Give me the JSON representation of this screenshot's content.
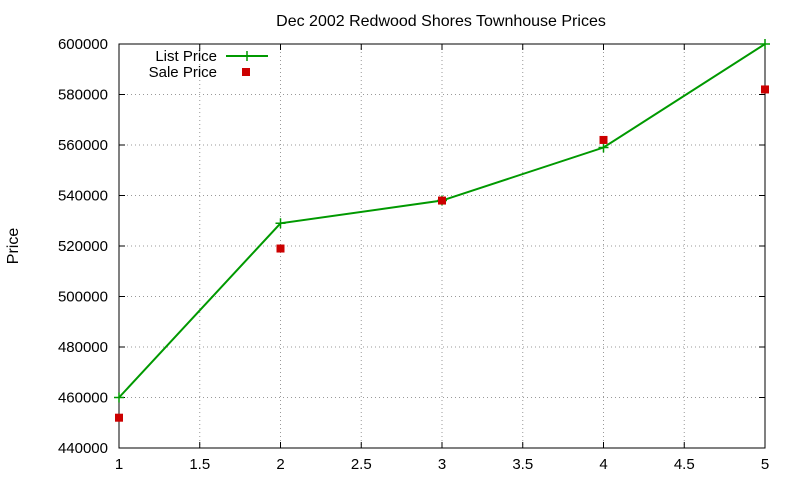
{
  "chart_data": {
    "type": "line",
    "title": "Dec 2002 Redwood Shores Townhouse Prices",
    "xlabel": "",
    "ylabel": "Price",
    "xlim": [
      1,
      5
    ],
    "ylim": [
      440000,
      600000
    ],
    "x_ticks": [
      "1",
      "1.5",
      "2",
      "2.5",
      "3",
      "3.5",
      "4",
      "4.5",
      "5"
    ],
    "y_ticks": [
      "440000",
      "460000",
      "480000",
      "500000",
      "520000",
      "540000",
      "560000",
      "580000",
      "600000"
    ],
    "grid": true,
    "legend_position": "top-left",
    "series": [
      {
        "name": "List Price",
        "style": "line-with-plus-markers",
        "color": "#009900",
        "x": [
          1,
          2,
          3,
          4,
          5
        ],
        "y": [
          460000,
          529000,
          538000,
          559000,
          600000
        ]
      },
      {
        "name": "Sale Price",
        "style": "square-markers",
        "color": "#cc0000",
        "x": [
          1,
          2,
          3,
          4,
          5
        ],
        "y": [
          452000,
          519000,
          538000,
          562000,
          582000
        ]
      }
    ]
  }
}
